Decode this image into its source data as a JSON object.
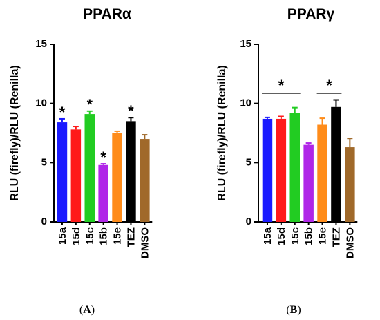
{
  "chart_data": [
    {
      "type": "bar",
      "title": "PPARα",
      "panel": "A",
      "ylabel": "RLU (firefly)/RLU (Renilla)",
      "ylim": [
        0,
        15
      ],
      "yticks": [
        0,
        5,
        10,
        15
      ],
      "categories": [
        "15a",
        "15d",
        "15c",
        "15b",
        "15e",
        "TEZ",
        "DMSO"
      ],
      "values": [
        8.4,
        7.8,
        9.1,
        4.8,
        7.5,
        8.5,
        7.0
      ],
      "errors": [
        0.3,
        0.25,
        0.25,
        0.1,
        0.15,
        0.3,
        0.35
      ],
      "colors": [
        "#1a1aff",
        "#ff1a1a",
        "#22cc22",
        "#b026e8",
        "#ff8c1a",
        "#000000",
        "#a0692a"
      ],
      "significance": [
        "*",
        "",
        "*",
        "*",
        "",
        "*",
        ""
      ],
      "brackets": []
    },
    {
      "type": "bar",
      "title": "PPARγ",
      "panel": "B",
      "ylabel": "RLU (firefly)/RLU (Renilla)",
      "ylim": [
        0,
        15
      ],
      "yticks": [
        0,
        5,
        10,
        15
      ],
      "categories": [
        "15a",
        "15d",
        "15c",
        "15b",
        "15e",
        "TEZ",
        "DMSO"
      ],
      "values": [
        8.7,
        8.7,
        9.2,
        6.5,
        8.2,
        9.7,
        6.3
      ],
      "errors": [
        0.12,
        0.2,
        0.45,
        0.15,
        0.55,
        0.6,
        0.75
      ],
      "colors": [
        "#1a1aff",
        "#ff1a1a",
        "#22cc22",
        "#b026e8",
        "#ff8c1a",
        "#000000",
        "#a0692a"
      ],
      "significance": [
        "",
        "",
        "",
        "",
        "",
        "",
        ""
      ],
      "brackets": [
        {
          "from": "15a",
          "to": "15c",
          "label": "*"
        },
        {
          "from": "15e",
          "to": "TEZ",
          "label": "*"
        }
      ]
    }
  ]
}
